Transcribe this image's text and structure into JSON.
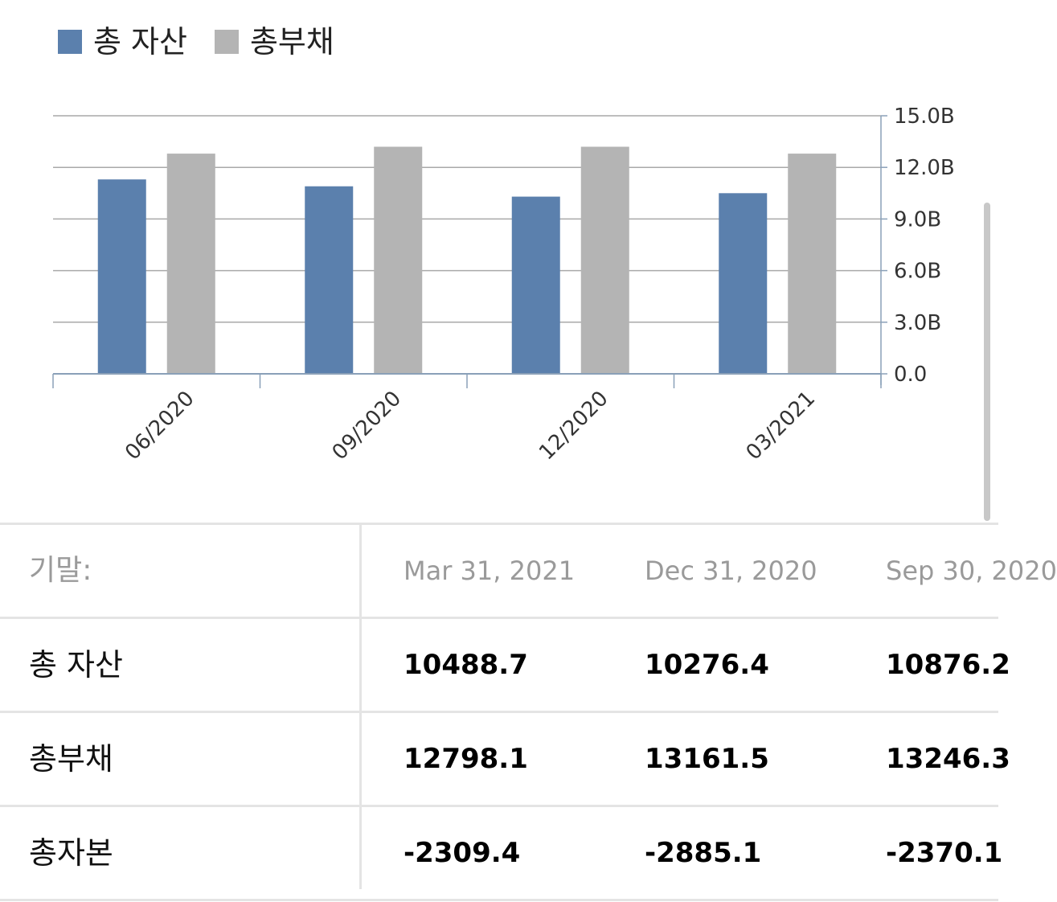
{
  "legend": {
    "items": [
      {
        "label": "총 자산",
        "color": "#5b80ad"
      },
      {
        "label": "총부채",
        "color": "#b4b4b4"
      }
    ]
  },
  "chart_data": {
    "type": "bar",
    "categories": [
      "06/2020",
      "09/2020",
      "12/2020",
      "03/2021"
    ],
    "series": [
      {
        "name": "총 자산",
        "color": "#5b80ad",
        "values": [
          11.3,
          10.9,
          10.3,
          10.5
        ]
      },
      {
        "name": "총부채",
        "color": "#b4b4b4",
        "values": [
          12.8,
          13.2,
          13.2,
          12.8
        ]
      }
    ],
    "yticks": [
      {
        "value": 0,
        "label": "0.0"
      },
      {
        "value": 3,
        "label": "3.0B"
      },
      {
        "value": 6,
        "label": "6.0B"
      },
      {
        "value": 9,
        "label": "9.0B"
      },
      {
        "value": 12,
        "label": "12.0B"
      },
      {
        "value": 15,
        "label": "15.0B"
      }
    ],
    "ylim": [
      0,
      15
    ],
    "yaxis_side": "right",
    "grid": true,
    "legend_position": "top-left"
  },
  "table": {
    "header": {
      "label": "기말:",
      "columns": [
        "Mar 31, 2021",
        "Dec 31, 2020",
        "Sep 30, 2020"
      ]
    },
    "rows": [
      {
        "label": "총 자산",
        "values": [
          "10488.7",
          "10276.4",
          "10876.2"
        ]
      },
      {
        "label": "총부채",
        "values": [
          "12798.1",
          "13161.5",
          "13246.3"
        ]
      },
      {
        "label": "총자본",
        "values": [
          "-2309.4",
          "-2885.1",
          "-2370.1"
        ]
      }
    ]
  }
}
